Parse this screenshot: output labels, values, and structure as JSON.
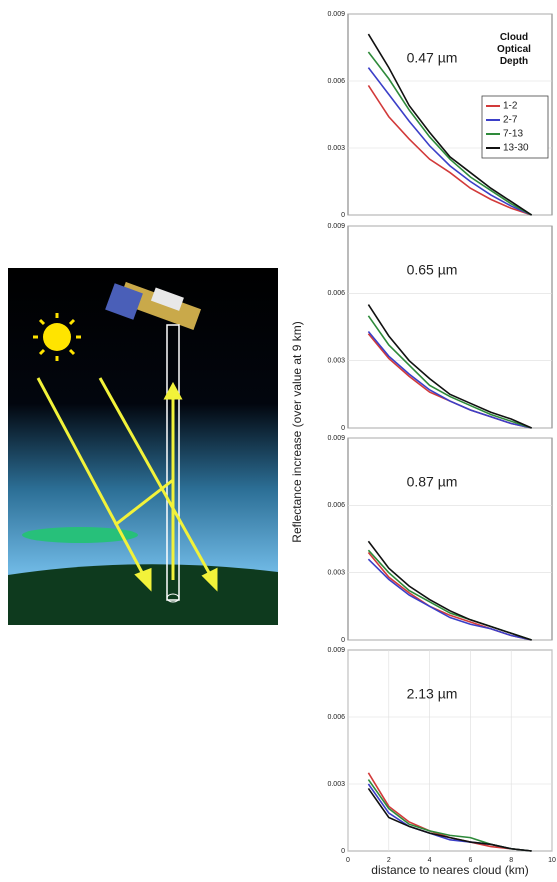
{
  "chart_data": [
    {
      "type": "line",
      "title": "0.47 µm",
      "y_label": "Reflectance increase (over value at 9 km)",
      "legend": "upper right",
      "legend_title": "Cloud Optical Depth",
      "grid": true,
      "x": [
        1,
        2,
        3,
        4,
        5,
        6,
        7,
        8,
        9
      ],
      "xlim": [
        0,
        10
      ],
      "ylim": [
        0,
        0.009
      ],
      "yticks": [
        0,
        0.003,
        0.006,
        0.009
      ],
      "series": [
        {
          "name": "1-2",
          "color": "#d23a3a",
          "values": [
            0.0058,
            0.0044,
            0.0034,
            0.0025,
            0.0019,
            0.0012,
            0.0007,
            0.0003,
            0
          ]
        },
        {
          "name": "2-7",
          "color": "#3b3fc8",
          "values": [
            0.0066,
            0.0054,
            0.0042,
            0.0031,
            0.0022,
            0.0015,
            0.0009,
            0.0004,
            0
          ]
        },
        {
          "name": "7-13",
          "color": "#2e8a3a",
          "values": [
            0.0073,
            0.0061,
            0.0047,
            0.0035,
            0.0025,
            0.0017,
            0.0011,
            0.0005,
            0
          ]
        },
        {
          "name": "13-30",
          "color": "#111111",
          "values": [
            0.0081,
            0.0066,
            0.0049,
            0.0037,
            0.0026,
            0.0019,
            0.0012,
            0.0006,
            0
          ]
        }
      ]
    },
    {
      "type": "line",
      "title": "0.65 µm",
      "grid": true,
      "x": [
        1,
        2,
        3,
        4,
        5,
        6,
        7,
        8,
        9
      ],
      "xlim": [
        0,
        10
      ],
      "ylim": [
        0,
        0.009
      ],
      "yticks": [
        0,
        0.003,
        0.006,
        0.009
      ],
      "series": [
        {
          "color": "#d23a3a",
          "values": [
            0.0042,
            0.0031,
            0.0023,
            0.0016,
            0.0012,
            0.0008,
            0.0005,
            0.0002,
            0
          ]
        },
        {
          "color": "#3b3fc8",
          "values": [
            0.0043,
            0.0032,
            0.0024,
            0.0017,
            0.0012,
            0.0008,
            0.0005,
            0.0002,
            0
          ]
        },
        {
          "color": "#2e8a3a",
          "values": [
            0.005,
            0.0037,
            0.0028,
            0.0019,
            0.0014,
            0.001,
            0.0006,
            0.0003,
            0
          ]
        },
        {
          "color": "#111111",
          "values": [
            0.0055,
            0.0041,
            0.003,
            0.0022,
            0.0015,
            0.0011,
            0.0007,
            0.0004,
            0
          ]
        }
      ]
    },
    {
      "type": "line",
      "title": "0.87 µm",
      "grid": true,
      "x": [
        1,
        2,
        3,
        4,
        5,
        6,
        7,
        8,
        9
      ],
      "xlim": [
        0,
        10
      ],
      "ylim": [
        0,
        0.009
      ],
      "yticks": [
        0,
        0.003,
        0.006,
        0.009
      ],
      "series": [
        {
          "color": "#d23a3a",
          "values": [
            0.0039,
            0.0028,
            0.0021,
            0.0015,
            0.0011,
            0.0008,
            0.0005,
            0.0002,
            0
          ]
        },
        {
          "color": "#3b3fc8",
          "values": [
            0.0036,
            0.0027,
            0.002,
            0.0015,
            0.001,
            0.0007,
            0.0005,
            0.0002,
            0
          ]
        },
        {
          "color": "#2e8a3a",
          "values": [
            0.004,
            0.003,
            0.0022,
            0.0017,
            0.0012,
            0.0009,
            0.0006,
            0.0003,
            0
          ]
        },
        {
          "color": "#111111",
          "values": [
            0.0044,
            0.0032,
            0.0024,
            0.0018,
            0.0013,
            0.0009,
            0.0006,
            0.0003,
            0
          ]
        }
      ]
    },
    {
      "type": "line",
      "title": "2.13 µm",
      "x_label": "distance to neares cloud (km)",
      "grid": true,
      "x": [
        1,
        2,
        3,
        4,
        5,
        6,
        7,
        8,
        9
      ],
      "xlim": [
        0,
        10
      ],
      "xticks": [
        0,
        2,
        4,
        6,
        8,
        10
      ],
      "ylim": [
        0,
        0.009
      ],
      "yticks": [
        0,
        0.003,
        0.006,
        0.009
      ],
      "series": [
        {
          "color": "#d23a3a",
          "values": [
            0.0035,
            0.002,
            0.0013,
            0.0009,
            0.0006,
            0.0004,
            0.0002,
            0.0001,
            0
          ]
        },
        {
          "color": "#3b3fc8",
          "values": [
            0.003,
            0.0017,
            0.0011,
            0.0008,
            0.0005,
            0.0004,
            0.0003,
            0.0001,
            0
          ]
        },
        {
          "color": "#2e8a3a",
          "values": [
            0.0032,
            0.0019,
            0.0012,
            0.0009,
            0.0007,
            0.0006,
            0.0003,
            0.0001,
            0
          ]
        },
        {
          "color": "#111111",
          "values": [
            0.0028,
            0.0015,
            0.0011,
            0.0008,
            0.0006,
            0.0004,
            0.0003,
            0.0001,
            0
          ]
        }
      ]
    }
  ]
}
